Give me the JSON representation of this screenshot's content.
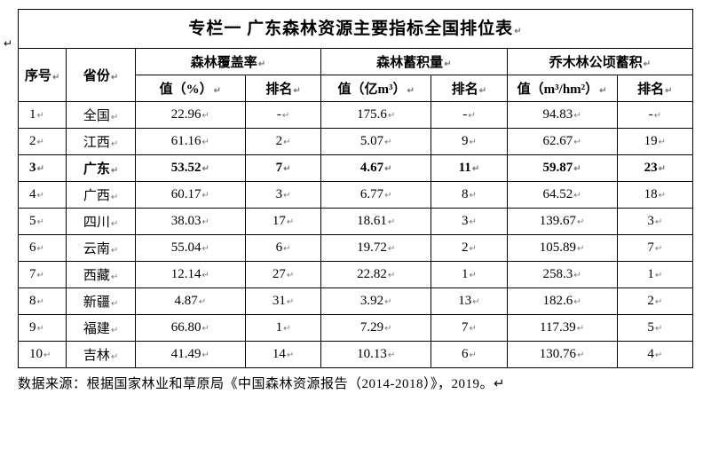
{
  "title": "专栏一 广东森林资源主要指标全国排位表",
  "leftMargin": "↵",
  "columns": {
    "seq": "序号",
    "province": "省份",
    "group1_header": "森林覆盖率",
    "group1_val": "值（%）",
    "group1_rank": "排名",
    "group2_header": "森林蓄积量",
    "group2_val": "值（亿m³）",
    "group2_rank": "排名",
    "group3_header": "乔木林公顷蓄积",
    "group3_val": "值（m³/hm²）",
    "group3_rank": "排名"
  },
  "rows": [
    {
      "seq": "1",
      "prov": "全国",
      "v1": "22.96",
      "r1": "-",
      "v2": "175.6",
      "r2": "-",
      "v3": "94.83",
      "r3": "-",
      "bold": false
    },
    {
      "seq": "2",
      "prov": "江西",
      "v1": "61.16",
      "r1": "2",
      "v2": "5.07",
      "r2": "9",
      "v3": "62.67",
      "r3": "19",
      "bold": false
    },
    {
      "seq": "3",
      "prov": "广东",
      "v1": "53.52",
      "r1": "7",
      "v2": "4.67",
      "r2": "11",
      "v3": "59.87",
      "r3": "23",
      "bold": true
    },
    {
      "seq": "4",
      "prov": "广西",
      "v1": "60.17",
      "r1": "3",
      "v2": "6.77",
      "r2": "8",
      "v3": "64.52",
      "r3": "18",
      "bold": false
    },
    {
      "seq": "5",
      "prov": "四川",
      "v1": "38.03",
      "r1": "17",
      "v2": "18.61",
      "r2": "3",
      "v3": "139.67",
      "r3": "3",
      "bold": false
    },
    {
      "seq": "6",
      "prov": "云南",
      "v1": "55.04",
      "r1": "6",
      "v2": "19.72",
      "r2": "2",
      "v3": "105.89",
      "r3": "7",
      "bold": false
    },
    {
      "seq": "7",
      "prov": "西藏",
      "v1": "12.14",
      "r1": "27",
      "v2": "22.82",
      "r2": "1",
      "v3": "258.3",
      "r3": "1",
      "bold": false
    },
    {
      "seq": "8",
      "prov": "新疆",
      "v1": "4.87",
      "r1": "31",
      "v2": "3.92",
      "r2": "13",
      "v3": "182.6",
      "r3": "2",
      "bold": false
    },
    {
      "seq": "9",
      "prov": "福建",
      "v1": "66.80",
      "r1": "1",
      "v2": "7.29",
      "r2": "7",
      "v3": "117.39",
      "r3": "5",
      "bold": false
    },
    {
      "seq": "10",
      "prov": "吉林",
      "v1": "41.49",
      "r1": "14",
      "v2": "10.13",
      "r2": "6",
      "v3": "130.76",
      "r3": "4",
      "bold": false
    }
  ],
  "source": "数据来源：根据国家林业和草原局《中国森林资源报告（2014-2018）》，2019。",
  "styling": {
    "font_family": "SimSun",
    "title_fontsize_pt": 14,
    "cell_fontsize_pt": 11,
    "border_color": "#000000",
    "background_color": "#ffffff",
    "text_color": "#000000",
    "highlight_row_index": 2,
    "highlight_style": "bold",
    "mark_color": "#777777"
  }
}
